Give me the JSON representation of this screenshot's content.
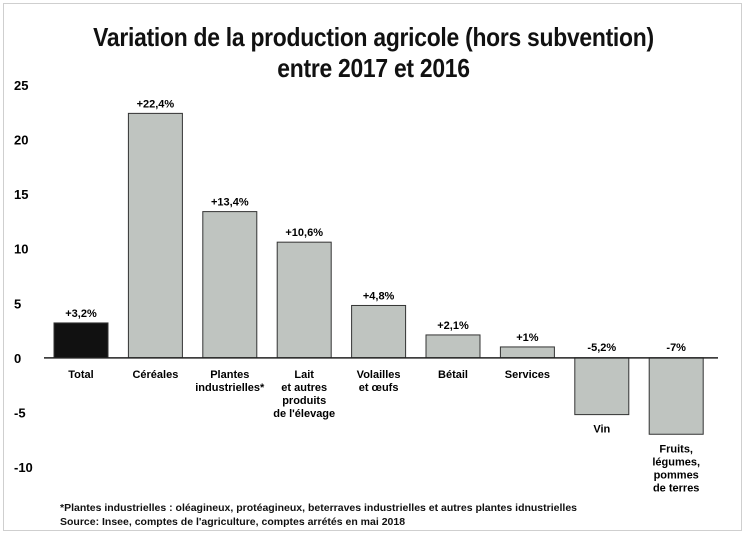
{
  "title_line1": "Variation de la production agricole (hors subvention)",
  "title_line2": "entre 2017 et 2016",
  "footnote": "*Plantes industrielles : oléagineux, protéagineux, beterraves industrielles et autres plantes idnustrielles",
  "source": "Source: Insee, comptes de l'agriculture, comptes arrétés en mai 2018",
  "colors": {
    "total": "#111111",
    "bar": "#bfc4c0",
    "axis": "#222222"
  },
  "chart_data": {
    "type": "bar",
    "title": "Variation de la production agricole (hors subvention) entre 2017 et 2016",
    "ylim": [
      -10,
      25
    ],
    "yticks": [
      25,
      20,
      15,
      10,
      5,
      0,
      -5,
      -10
    ],
    "grid": false,
    "legend": "none",
    "categories": [
      [
        "Total"
      ],
      [
        "Céréales"
      ],
      [
        "Plantes",
        "industrielles*"
      ],
      [
        "Lait",
        "et autres",
        "produits",
        "de l'élevage"
      ],
      [
        "Volailles",
        "et œufs"
      ],
      [
        "Bétail"
      ],
      [
        "Services"
      ],
      [
        "Vin"
      ],
      [
        "Fruits,",
        "légumes,",
        "pommes",
        "de terres"
      ]
    ],
    "values": [
      3.2,
      22.4,
      13.4,
      10.6,
      4.8,
      2.1,
      1.0,
      -5.2,
      -7.0
    ],
    "value_labels": [
      "+3,2%",
      "+22,4%",
      "+13,4%",
      "+10,6%",
      "+4,8%",
      "+2,1%",
      "+1%",
      "-5,2%",
      "-7%"
    ]
  }
}
